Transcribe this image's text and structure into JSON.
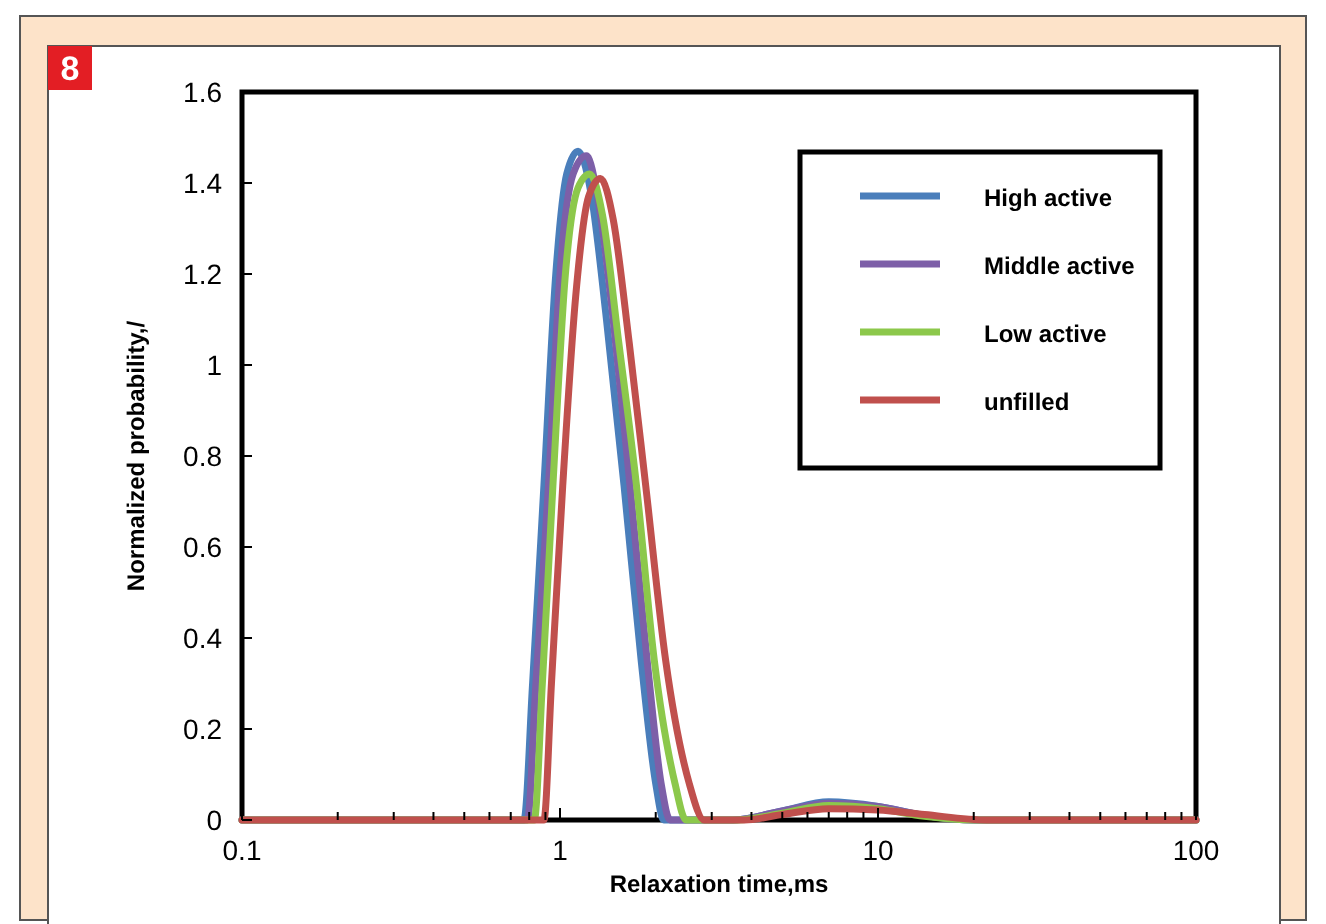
{
  "chart_data": {
    "type": "line",
    "xlabel": "Relaxation time,ms",
    "ylabel": "Normalized probability,/",
    "annotations": [
      "8"
    ],
    "log": "x",
    "xlim": [
      0.1,
      100
    ],
    "ylim": [
      0,
      1.6
    ],
    "xticks": [
      0.1,
      {
        "value": 0.2,
        "label": null
      },
      {
        "value": 0.3,
        "label": null
      },
      {
        "value": 0.4,
        "label": null
      },
      {
        "value": 0.5,
        "label": null
      },
      {
        "value": 0.6,
        "label": null
      },
      {
        "value": 0.7,
        "label": null
      },
      {
        "value": 0.8,
        "label": null
      },
      {
        "value": 0.9,
        "label": null
      },
      1,
      {
        "value": 2,
        "label": null
      },
      {
        "value": 3,
        "label": null
      },
      {
        "value": 4,
        "label": null
      },
      {
        "value": 5,
        "label": null
      },
      {
        "value": 6,
        "label": null
      },
      {
        "value": 7,
        "label": null
      },
      {
        "value": 8,
        "label": null
      },
      {
        "value": 9,
        "label": null
      },
      10,
      {
        "value": 20,
        "label": null
      },
      {
        "value": 30,
        "label": null
      },
      {
        "value": 40,
        "label": null
      },
      {
        "value": 50,
        "label": null
      },
      {
        "value": 60,
        "label": null
      },
      {
        "value": 70,
        "label": null
      },
      {
        "value": 80,
        "label": null
      },
      {
        "value": 90,
        "label": null
      },
      100
    ],
    "yticks": [
      0,
      0.2,
      0.4,
      0.6,
      0.8,
      1,
      1.2,
      1.4,
      1.6
    ],
    "legend": "top right",
    "grid": false,
    "marker": "none",
    "line_style": "solid",
    "series": [
      {
        "name": "High active",
        "color": "#4a7ebb",
        "x": [
          0.1,
          0.77,
          0.82,
          0.89,
          0.97,
          1.05,
          1.14,
          1.25,
          1.4,
          1.59,
          1.8,
          2.0,
          2.12,
          3.5,
          5,
          7,
          10,
          14,
          20,
          100
        ],
        "values": [
          0,
          0,
          0.3,
          0.735,
          1.2,
          1.42,
          1.47,
          1.38,
          1.1,
          0.735,
          0.35,
          0.08,
          0,
          0,
          0.02,
          0.04,
          0.03,
          0.01,
          0,
          0
        ]
      },
      {
        "name": "Middle active",
        "color": "#7d5fa8",
        "x": [
          0.1,
          0.79,
          0.84,
          0.92,
          1.0,
          1.1,
          1.21,
          1.32,
          1.48,
          1.66,
          1.88,
          2.08,
          2.22,
          3.5,
          5,
          7,
          10,
          14,
          20,
          100
        ],
        "values": [
          0,
          0,
          0.3,
          0.735,
          1.2,
          1.42,
          1.46,
          1.36,
          1.08,
          0.735,
          0.35,
          0.08,
          0,
          0,
          0.02,
          0.037,
          0.03,
          0.01,
          0,
          0
        ]
      },
      {
        "name": "Low active",
        "color": "#8cc84b",
        "x": [
          0.1,
          0.83,
          0.88,
          0.95,
          1.04,
          1.14,
          1.24,
          1.36,
          1.53,
          1.74,
          1.98,
          2.3,
          2.49,
          3.6,
          5,
          7,
          10,
          14,
          20,
          100
        ],
        "values": [
          0,
          0,
          0.3,
          0.735,
          1.2,
          1.39,
          1.42,
          1.33,
          1.05,
          0.735,
          0.35,
          0.08,
          0,
          0,
          0.015,
          0.032,
          0.025,
          0.008,
          0,
          0
        ]
      },
      {
        "name": "unfilled",
        "color": "#c0504d",
        "x": [
          0.1,
          0.89,
          0.94,
          1.02,
          1.12,
          1.23,
          1.34,
          1.47,
          1.65,
          1.86,
          2.15,
          2.55,
          2.84,
          3.8,
          5,
          7,
          10,
          14,
          22,
          100
        ],
        "values": [
          0,
          0,
          0.3,
          0.735,
          1.15,
          1.37,
          1.41,
          1.32,
          1.05,
          0.735,
          0.35,
          0.08,
          0,
          0,
          0.012,
          0.025,
          0.022,
          0.012,
          0,
          0
        ]
      }
    ]
  }
}
